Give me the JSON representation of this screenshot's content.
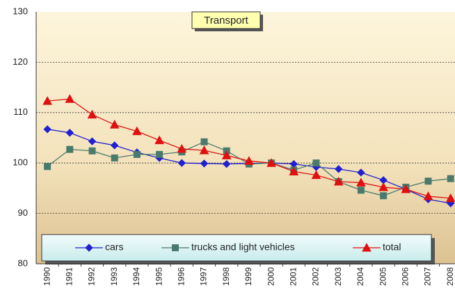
{
  "chart_data": {
    "type": "line",
    "title": "Transport",
    "categories": [
      "1990",
      "1991",
      "1992",
      "1993",
      "1994",
      "1995",
      "1996",
      "1997",
      "1998",
      "1999",
      "2000",
      "2001",
      "2002",
      "2003",
      "2004",
      "2005",
      "2006",
      "2007",
      "2008"
    ],
    "series": [
      {
        "name": "cars",
        "color": "#2020d0",
        "marker": "diamond",
        "values": [
          106.7,
          106.0,
          104.3,
          103.5,
          102.1,
          101.0,
          100.0,
          99.9,
          99.8,
          99.9,
          100.0,
          99.8,
          99.2,
          98.8,
          98.1,
          96.6,
          94.8,
          92.8,
          92.0
        ]
      },
      {
        "name": "trucks and light vehicles",
        "color": "#4a7a6c",
        "marker": "square",
        "values": [
          99.3,
          102.7,
          102.4,
          101.0,
          101.7,
          101.7,
          102.2,
          104.2,
          102.4,
          99.8,
          100.0,
          98.6,
          100.0,
          96.3,
          94.6,
          93.5,
          95.2,
          96.4,
          96.9
        ]
      },
      {
        "name": "total",
        "color": "#e01010",
        "marker": "triangle",
        "values": [
          112.3,
          112.7,
          109.6,
          107.6,
          106.3,
          104.5,
          102.8,
          102.5,
          101.5,
          100.4,
          100.0,
          98.3,
          97.6,
          96.3,
          96.1,
          95.2,
          94.8,
          93.4,
          93.0
        ]
      }
    ],
    "ylim": [
      80,
      130
    ],
    "yticks": [
      80,
      90,
      100,
      110,
      120,
      130
    ],
    "grid": true,
    "legend_position": "bottom"
  }
}
